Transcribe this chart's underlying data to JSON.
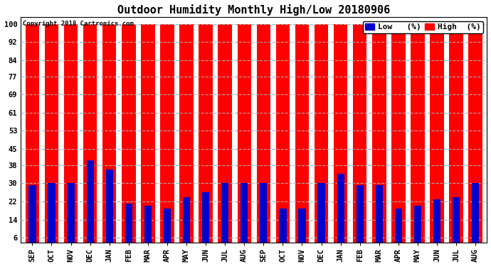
{
  "title": "Outdoor Humidity Monthly High/Low 20180906",
  "copyright": "Copyright 2018 Cartronics.com",
  "months": [
    "SEP",
    "OCT",
    "NOV",
    "DEC",
    "JAN",
    "FEB",
    "MAR",
    "APR",
    "MAY",
    "JUN",
    "JUL",
    "AUG",
    "SEP",
    "OCT",
    "NOV",
    "DEC",
    "JAN",
    "FEB",
    "MAR",
    "APR",
    "MAY",
    "JUN",
    "JUL",
    "AUG"
  ],
  "high_values": [
    100,
    100,
    100,
    100,
    100,
    100,
    100,
    100,
    100,
    100,
    100,
    100,
    100,
    100,
    100,
    100,
    100,
    100,
    100,
    100,
    100,
    100,
    100,
    100
  ],
  "low_values": [
    29,
    30,
    30,
    40,
    36,
    21,
    20,
    19,
    24,
    26,
    30,
    30,
    30,
    19,
    19,
    30,
    34,
    29,
    29,
    19,
    20,
    23,
    24,
    30
  ],
  "high_color": "#ff0000",
  "low_color": "#0000cc",
  "bg_color": "#ffffff",
  "plot_bg_color": "#ffffff",
  "grid_color": "#aaaaaa",
  "yticks": [
    6,
    14,
    22,
    30,
    38,
    45,
    53,
    61,
    69,
    77,
    84,
    92,
    100
  ],
  "ylim": [
    4,
    103
  ],
  "red_bar_width": 0.72,
  "blue_bar_width": 0.38,
  "title_fontsize": 11,
  "axis_fontsize": 7.5,
  "legend_fontsize": 8
}
